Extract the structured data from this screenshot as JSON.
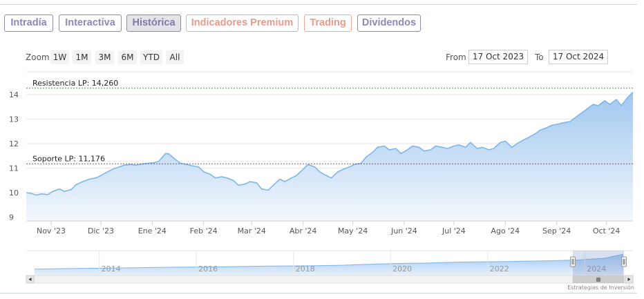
{
  "tabs": [
    {
      "label": "Intradía",
      "style": "normal"
    },
    {
      "label": "Interactiva",
      "style": "normal"
    },
    {
      "label": "Histórica",
      "style": "active"
    },
    {
      "label": "Indicadores Premium",
      "style": "orange"
    },
    {
      "label": "Trading",
      "style": "orange"
    },
    {
      "label": "Dividendos",
      "style": "normal"
    }
  ],
  "zoom": {
    "label": "Zoom",
    "buttons": [
      "1W",
      "1M",
      "3M",
      "6M",
      "YTD",
      "All"
    ]
  },
  "range": {
    "from_label": "From",
    "from_value": "17 Oct 2023",
    "to_label": "To",
    "to_value": "17 Oct 2024"
  },
  "credit": "Estrategias de Inversión",
  "colors": {
    "series_line": "#7cb5ec",
    "area_top": "#9cc5ee",
    "area_bottom": "#f4f8fd",
    "resistance": "#3c9a3c",
    "support": "#b83a3a",
    "tab_border": "#8d89b5",
    "tab_orange": "#e79b8a"
  },
  "chart_data": {
    "type": "area",
    "ylim": [
      9,
      14.26
    ],
    "yticks": [
      9,
      10,
      11,
      12,
      13,
      14
    ],
    "xlim": [
      "2023-10-17",
      "2024-10-17"
    ],
    "xticks": [
      {
        "date": "2023-11-01",
        "label": "Nov '23"
      },
      {
        "date": "2023-12-01",
        "label": "Dic '23"
      },
      {
        "date": "2024-01-01",
        "label": "Ene '24"
      },
      {
        "date": "2024-02-01",
        "label": "Feb '24"
      },
      {
        "date": "2024-03-01",
        "label": "Mar '24"
      },
      {
        "date": "2024-04-01",
        "label": "Abr '24"
      },
      {
        "date": "2024-05-01",
        "label": "May '24"
      },
      {
        "date": "2024-06-01",
        "label": "Jun '24"
      },
      {
        "date": "2024-07-01",
        "label": "Jul '24"
      },
      {
        "date": "2024-08-01",
        "label": "Ago '24"
      },
      {
        "date": "2024-09-01",
        "label": "Sep '24"
      },
      {
        "date": "2024-10-01",
        "label": "Oct '24"
      }
    ],
    "plotlines": [
      {
        "label": "Resistencia LP: 14,260",
        "value": 14.26,
        "color": "#3c9a3c"
      },
      {
        "label": "Soporte LP: 11,176",
        "value": 11.176,
        "color": "#b83a3a"
      }
    ],
    "series": [
      {
        "points": [
          [
            "2023-10-17",
            10.0
          ],
          [
            "2023-10-20",
            9.97
          ],
          [
            "2023-10-23",
            9.9
          ],
          [
            "2023-10-26",
            9.95
          ],
          [
            "2023-10-30",
            9.92
          ],
          [
            "2023-11-02",
            10.05
          ],
          [
            "2023-11-06",
            10.15
          ],
          [
            "2023-11-09",
            10.05
          ],
          [
            "2023-11-13",
            10.12
          ],
          [
            "2023-11-16",
            10.32
          ],
          [
            "2023-11-20",
            10.45
          ],
          [
            "2023-11-24",
            10.55
          ],
          [
            "2023-11-28",
            10.6
          ],
          [
            "2023-12-01",
            10.7
          ],
          [
            "2023-12-05",
            10.85
          ],
          [
            "2023-12-08",
            10.95
          ],
          [
            "2023-12-12",
            11.05
          ],
          [
            "2023-12-15",
            11.12
          ],
          [
            "2023-12-19",
            11.15
          ],
          [
            "2023-12-22",
            11.12
          ],
          [
            "2023-12-27",
            11.18
          ],
          [
            "2024-01-02",
            11.22
          ],
          [
            "2024-01-05",
            11.28
          ],
          [
            "2024-01-09",
            11.6
          ],
          [
            "2024-01-11",
            11.58
          ],
          [
            "2024-01-15",
            11.35
          ],
          [
            "2024-01-18",
            11.2
          ],
          [
            "2024-01-22",
            11.15
          ],
          [
            "2024-01-25",
            11.1
          ],
          [
            "2024-01-29",
            11.05
          ],
          [
            "2024-02-01",
            10.85
          ],
          [
            "2024-02-05",
            10.75
          ],
          [
            "2024-02-08",
            10.6
          ],
          [
            "2024-02-12",
            10.65
          ],
          [
            "2024-02-15",
            10.6
          ],
          [
            "2024-02-19",
            10.5
          ],
          [
            "2024-02-22",
            10.3
          ],
          [
            "2024-02-26",
            10.35
          ],
          [
            "2024-02-29",
            10.45
          ],
          [
            "2024-03-04",
            10.4
          ],
          [
            "2024-03-07",
            10.15
          ],
          [
            "2024-03-11",
            10.1
          ],
          [
            "2024-03-14",
            10.3
          ],
          [
            "2024-03-18",
            10.55
          ],
          [
            "2024-03-21",
            10.45
          ],
          [
            "2024-03-25",
            10.6
          ],
          [
            "2024-03-28",
            10.7
          ],
          [
            "2024-04-01",
            10.95
          ],
          [
            "2024-04-04",
            11.15
          ],
          [
            "2024-04-08",
            11.05
          ],
          [
            "2024-04-11",
            10.85
          ],
          [
            "2024-04-15",
            10.7
          ],
          [
            "2024-04-18",
            10.6
          ],
          [
            "2024-04-22",
            10.85
          ],
          [
            "2024-04-25",
            10.95
          ],
          [
            "2024-04-29",
            11.05
          ],
          [
            "2024-05-02",
            11.15
          ],
          [
            "2024-05-06",
            11.2
          ],
          [
            "2024-05-09",
            11.45
          ],
          [
            "2024-05-13",
            11.65
          ],
          [
            "2024-05-16",
            11.85
          ],
          [
            "2024-05-20",
            11.9
          ],
          [
            "2024-05-23",
            11.75
          ],
          [
            "2024-05-27",
            11.8
          ],
          [
            "2024-05-30",
            11.6
          ],
          [
            "2024-06-03",
            11.75
          ],
          [
            "2024-06-06",
            11.9
          ],
          [
            "2024-06-10",
            11.85
          ],
          [
            "2024-06-13",
            11.7
          ],
          [
            "2024-06-17",
            11.75
          ],
          [
            "2024-06-20",
            11.9
          ],
          [
            "2024-06-24",
            11.85
          ],
          [
            "2024-06-27",
            11.8
          ],
          [
            "2024-07-01",
            11.9
          ],
          [
            "2024-07-04",
            11.95
          ],
          [
            "2024-07-08",
            11.85
          ],
          [
            "2024-07-11",
            12.05
          ],
          [
            "2024-07-15",
            11.8
          ],
          [
            "2024-07-18",
            11.85
          ],
          [
            "2024-07-22",
            11.75
          ],
          [
            "2024-07-25",
            11.8
          ],
          [
            "2024-07-29",
            12.05
          ],
          [
            "2024-08-01",
            12.1
          ],
          [
            "2024-08-05",
            11.85
          ],
          [
            "2024-08-08",
            12.0
          ],
          [
            "2024-08-12",
            12.15
          ],
          [
            "2024-08-15",
            12.25
          ],
          [
            "2024-08-19",
            12.4
          ],
          [
            "2024-08-22",
            12.55
          ],
          [
            "2024-08-26",
            12.65
          ],
          [
            "2024-08-29",
            12.75
          ],
          [
            "2024-09-02",
            12.8
          ],
          [
            "2024-09-05",
            12.85
          ],
          [
            "2024-09-09",
            12.9
          ],
          [
            "2024-09-12",
            13.05
          ],
          [
            "2024-09-16",
            13.25
          ],
          [
            "2024-09-19",
            13.4
          ],
          [
            "2024-09-23",
            13.6
          ],
          [
            "2024-09-26",
            13.55
          ],
          [
            "2024-09-30",
            13.75
          ],
          [
            "2024-10-03",
            13.6
          ],
          [
            "2024-10-07",
            13.8
          ],
          [
            "2024-10-10",
            13.55
          ],
          [
            "2024-10-14",
            13.9
          ],
          [
            "2024-10-17",
            14.1
          ]
        ]
      }
    ],
    "navigator": {
      "xticks": [
        {
          "date": "2014-01-01",
          "label": "2014"
        },
        {
          "date": "2016-01-01",
          "label": "2016"
        },
        {
          "date": "2018-01-01",
          "label": "2018"
        },
        {
          "date": "2020-01-01",
          "label": "2020"
        },
        {
          "date": "2022-01-01",
          "label": "2022"
        },
        {
          "date": "2024-01-01",
          "label": "2024"
        }
      ],
      "series": [
        [
          "2012-09-01",
          6.0
        ],
        [
          "2013-06-01",
          6.3
        ],
        [
          "2014-06-01",
          6.6
        ],
        [
          "2015-06-01",
          7.0
        ],
        [
          "2016-06-01",
          7.2
        ],
        [
          "2017-06-01",
          7.6
        ],
        [
          "2018-06-01",
          7.8
        ],
        [
          "2019-01-01",
          8.1
        ],
        [
          "2019-09-01",
          8.7
        ],
        [
          "2020-03-01",
          9.1
        ],
        [
          "2020-09-01",
          9.2
        ],
        [
          "2021-06-01",
          9.8
        ],
        [
          "2022-06-01",
          10.1
        ],
        [
          "2023-06-01",
          10.6
        ],
        [
          "2023-12-01",
          11.0
        ],
        [
          "2024-06-01",
          11.9
        ],
        [
          "2024-10-17",
          14.1
        ]
      ]
    }
  }
}
